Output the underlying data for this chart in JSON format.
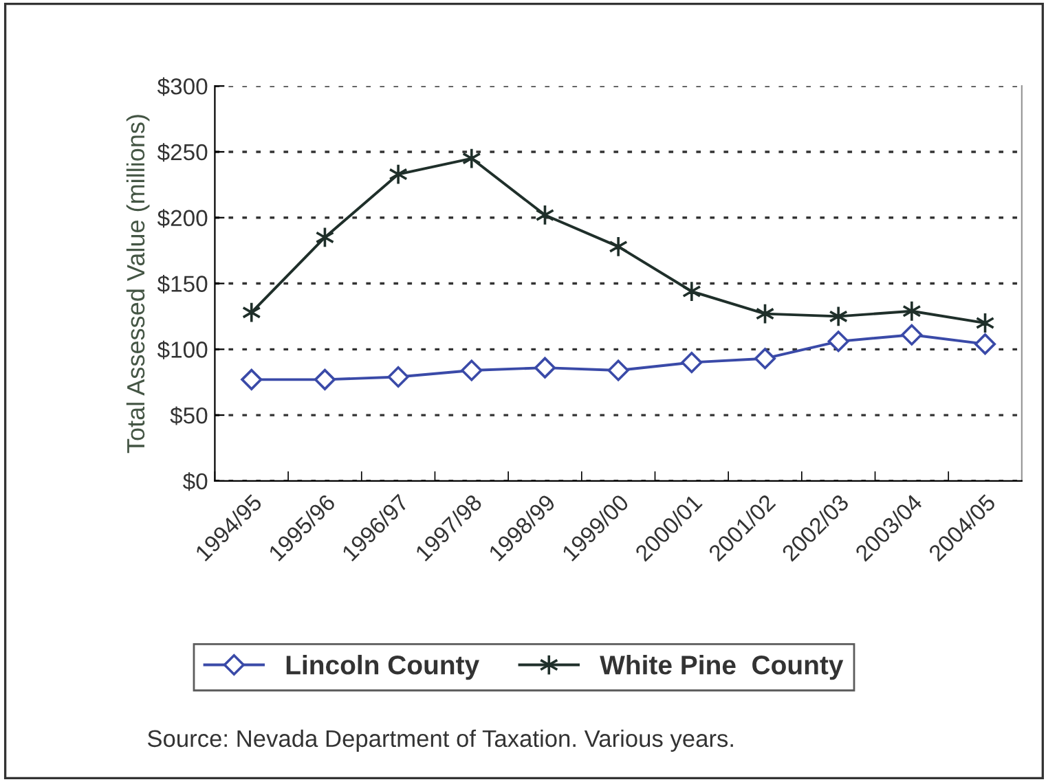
{
  "chart_data": {
    "type": "line",
    "ylabel": "Total Assessed Value (millions)",
    "categories": [
      "1994/95",
      "1995/96",
      "1996/97",
      "1997/98",
      "1998/99",
      "1999/00",
      "2000/01",
      "2001/02",
      "2002/03",
      "2003/04",
      "2004/05"
    ],
    "series": [
      {
        "name": "Lincoln County",
        "color": "#3a4aa8",
        "marker": "diamond",
        "values": [
          77,
          77,
          79,
          84,
          86,
          84,
          90,
          93,
          106,
          111,
          104
        ]
      },
      {
        "name": "White Pine  County",
        "color": "#1f2f2a",
        "marker": "cross",
        "values": [
          128,
          185,
          233,
          245,
          202,
          178,
          144,
          127,
          125,
          129,
          120
        ]
      }
    ],
    "ylim": [
      0,
      300
    ],
    "yticks": [
      {
        "value": 0,
        "label": "$0"
      },
      {
        "value": 50,
        "label": "$50"
      },
      {
        "value": 100,
        "label": "$100"
      },
      {
        "value": 150,
        "label": "$150"
      },
      {
        "value": 200,
        "label": "$200"
      },
      {
        "value": 250,
        "label": "$250"
      },
      {
        "value": 300,
        "label": "$300"
      }
    ],
    "grid": "y",
    "legend": "bottom",
    "line_style": "solid",
    "annotations": [
      "Source: Nevada Department of Taxation. Various years."
    ]
  }
}
